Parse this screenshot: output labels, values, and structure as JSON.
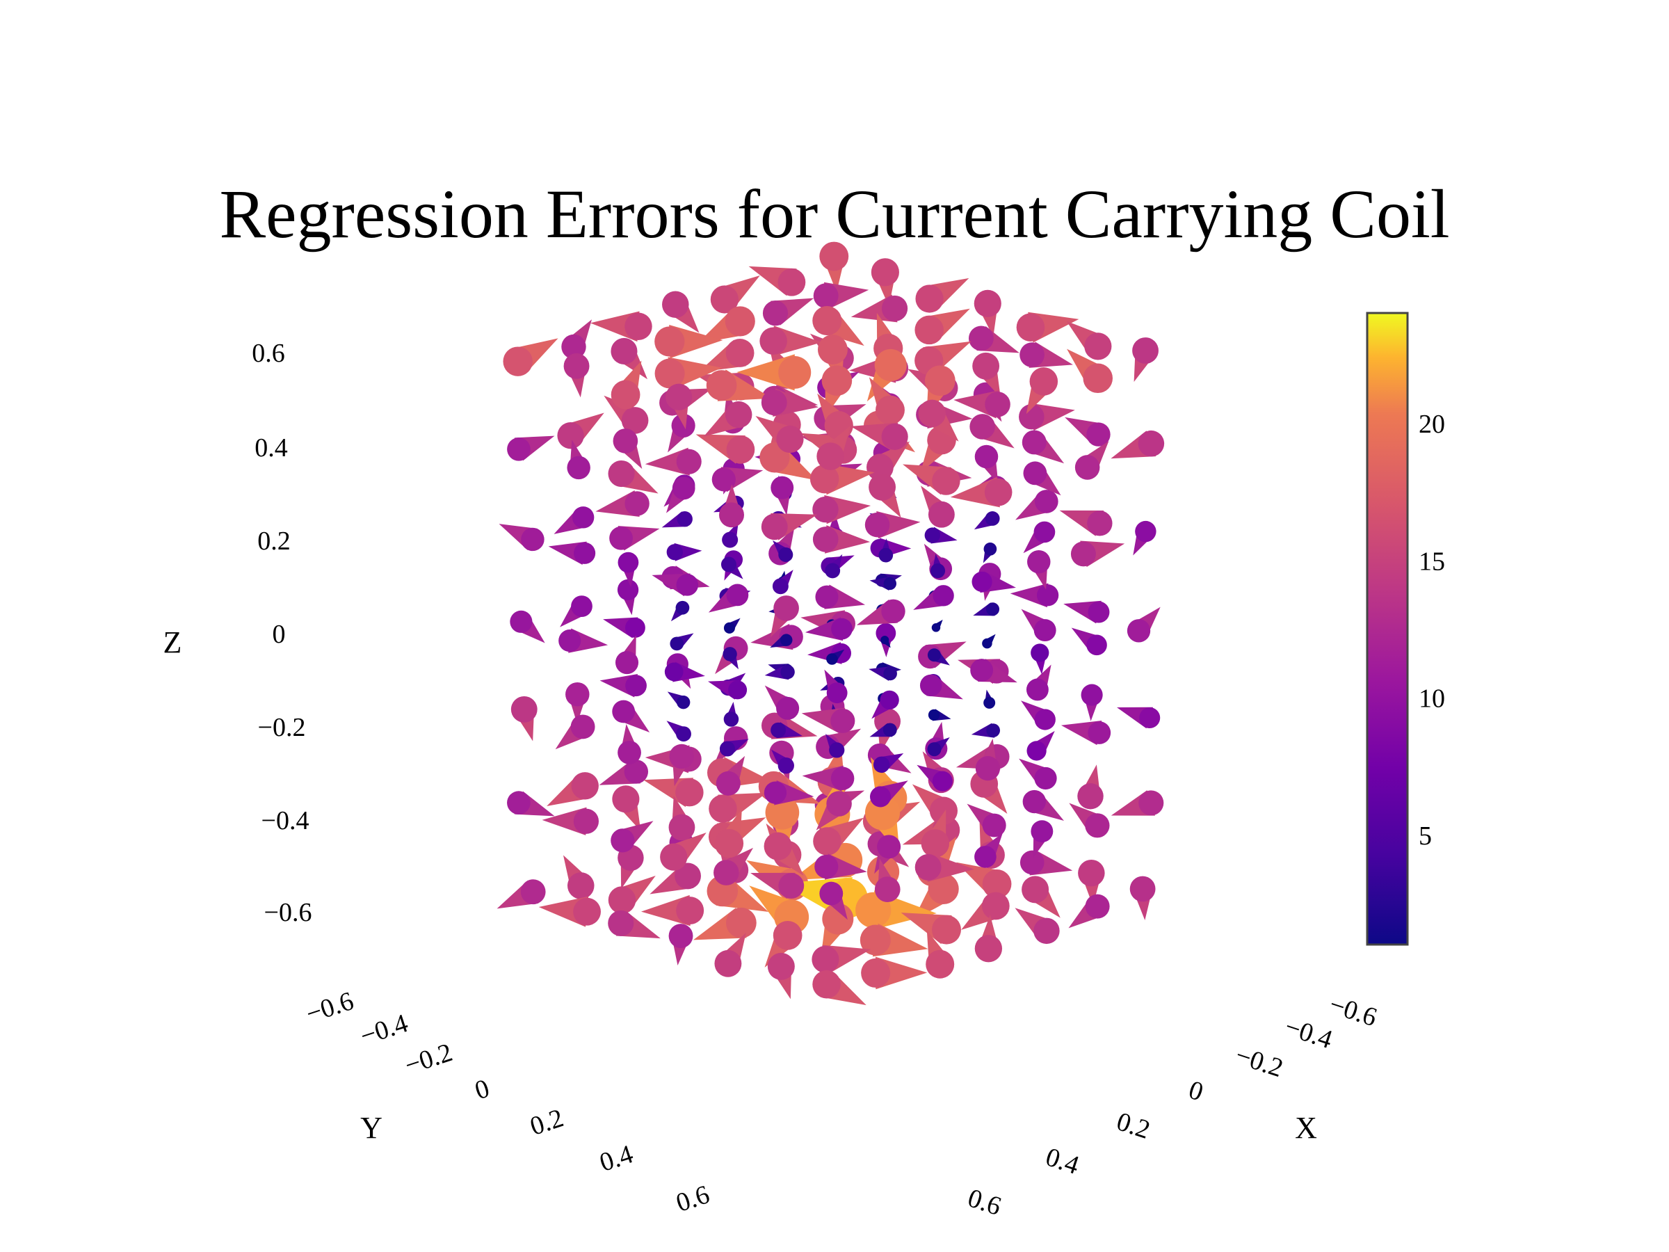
{
  "chart_data": {
    "type": "cone",
    "title": "Regression Errors for Current Carrying Coil",
    "axes": {
      "x": {
        "label": "X",
        "range": [
          -0.6,
          0.6
        ],
        "ticks": [
          "−0.6",
          "−0.4",
          "−0.2",
          "0",
          "0.2",
          "0.4",
          "0.6"
        ]
      },
      "y": {
        "label": "Y",
        "range": [
          -0.6,
          0.6
        ],
        "ticks": [
          "−0.6",
          "−0.4",
          "−0.2",
          "0",
          "0.2",
          "0.4",
          "0.6"
        ]
      },
      "z": {
        "label": "Z",
        "range": [
          -0.6,
          0.6
        ],
        "ticks": [
          "0.6",
          "0.4",
          "0.2",
          "0",
          "−0.2",
          "−0.4",
          "−0.6"
        ]
      }
    },
    "colorbar": {
      "colorscale": "plasma",
      "range": [
        1,
        24
      ],
      "ticks": [
        "20",
        "15",
        "10",
        "5"
      ],
      "tick_values": [
        20,
        15,
        10,
        5
      ]
    },
    "field_summary": {
      "grid": "regular 3D grid over X, Y, Z in [-0.6, 0.6]",
      "max_magnitude_region": "bottom center near Z = -0.5 and left side near Z = 0",
      "min_magnitude_region": "interior near Z = 0.2 to -0.2"
    },
    "colors": {
      "low": "#0d0887",
      "mid": "#cc4778",
      "high": "#f0f921"
    }
  }
}
